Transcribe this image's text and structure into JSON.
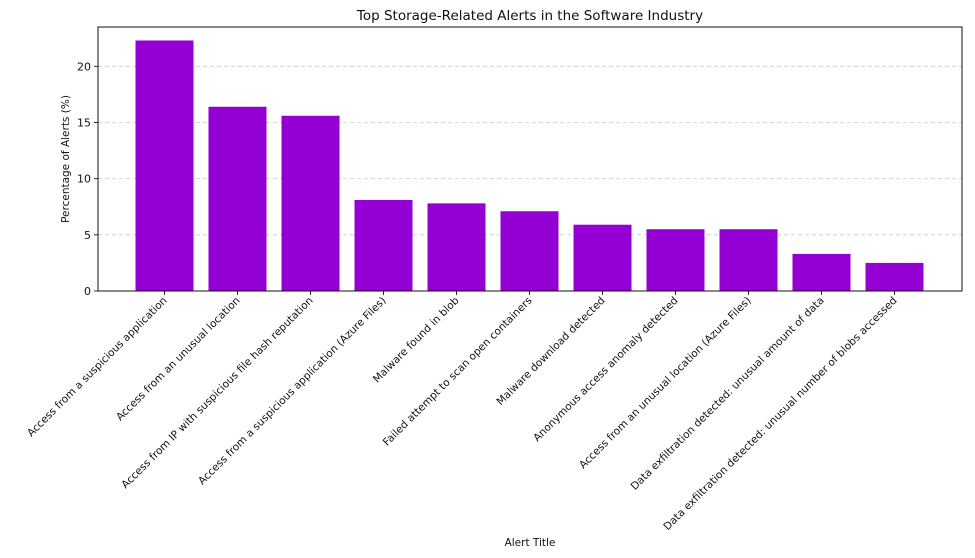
{
  "chart_data": {
    "type": "bar",
    "title": "Top Storage-Related Alerts in the Software Industry",
    "xlabel": "Alert Title",
    "ylabel": "Percentage of Alerts (%)",
    "ylim": [
      0,
      23.5
    ],
    "yticks": [
      0,
      5,
      10,
      15,
      20
    ],
    "grid": "y-dashed",
    "legend": "none",
    "bar_color": "#9400D3",
    "categories": [
      "Access from a suspicious application",
      "Access from an unusual location",
      "Access from IP with suspicious file hash reputation",
      "Access from a suspicious application (Azure Files)",
      "Malware found in blob",
      "Failed attempt to scan open containers",
      "Malware download detected",
      "Anonymous access anomaly detected",
      "Access from an unusual location (Azure Files)",
      "Data exfiltration detected: unusual amount of data",
      "Data exfiltration detected: unusual number of blobs accessed"
    ],
    "values": [
      22.3,
      16.4,
      15.6,
      8.1,
      7.8,
      7.1,
      5.9,
      5.5,
      5.5,
      3.3,
      2.5
    ]
  }
}
